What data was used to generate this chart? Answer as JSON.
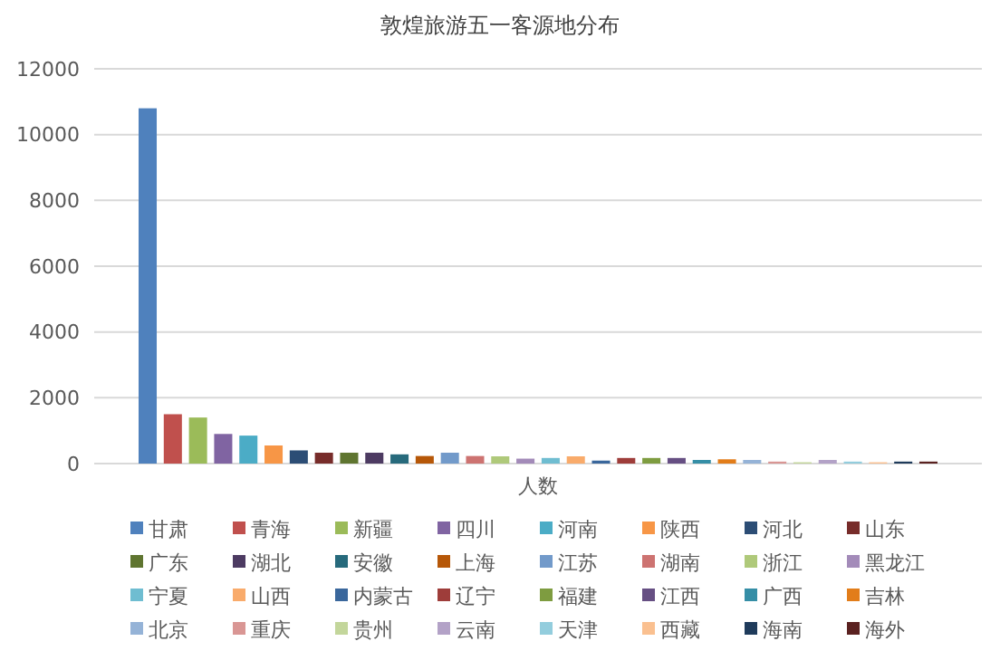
{
  "chart_data": {
    "type": "bar",
    "title": "敦煌旅游五一客源地分布",
    "categories": [
      "人数"
    ],
    "ylim": [
      0,
      12000
    ],
    "yticks": [
      0,
      2000,
      4000,
      6000,
      8000,
      10000,
      12000
    ],
    "grid": "y",
    "legend": "bottom",
    "series": [
      {
        "name": "甘肃",
        "color": "#4f81bd",
        "values": [
          10800
        ]
      },
      {
        "name": "青海",
        "color": "#c0504d",
        "values": [
          1500
        ]
      },
      {
        "name": "新疆",
        "color": "#9bbb59",
        "values": [
          1400
        ]
      },
      {
        "name": "四川",
        "color": "#8064a2",
        "values": [
          900
        ]
      },
      {
        "name": "河南",
        "color": "#4bacc6",
        "values": [
          850
        ]
      },
      {
        "name": "陕西",
        "color": "#f79646",
        "values": [
          550
        ]
      },
      {
        "name": "河北",
        "color": "#2c4d75",
        "values": [
          400
        ]
      },
      {
        "name": "山东",
        "color": "#772c2a",
        "values": [
          330
        ]
      },
      {
        "name": "广东",
        "color": "#5f7530",
        "values": [
          330
        ]
      },
      {
        "name": "湖北",
        "color": "#4d3b62",
        "values": [
          330
        ]
      },
      {
        "name": "安徽",
        "color": "#276a7c",
        "values": [
          280
        ]
      },
      {
        "name": "上海",
        "color": "#b65708",
        "values": [
          230
        ]
      },
      {
        "name": "江苏",
        "color": "#729aca",
        "values": [
          330
        ]
      },
      {
        "name": "湖南",
        "color": "#cd7371",
        "values": [
          230
        ]
      },
      {
        "name": "浙江",
        "color": "#afc97a",
        "values": [
          220
        ]
      },
      {
        "name": "黑龙江",
        "color": "#a38bb9",
        "values": [
          150
        ]
      },
      {
        "name": "宁夏",
        "color": "#6fbdd1",
        "values": [
          170
        ]
      },
      {
        "name": "山西",
        "color": "#f9ab6b",
        "values": [
          220
        ]
      },
      {
        "name": "内蒙古",
        "color": "#3a679c",
        "values": [
          90
        ]
      },
      {
        "name": "辽宁",
        "color": "#9e3d3a",
        "values": [
          170
        ]
      },
      {
        "name": "福建",
        "color": "#7e9c40",
        "values": [
          170
        ]
      },
      {
        "name": "江西",
        "color": "#664f83",
        "values": [
          170
        ]
      },
      {
        "name": "广西",
        "color": "#358ea6",
        "values": [
          110
        ]
      },
      {
        "name": "吉林",
        "color": "#e27d1a",
        "values": [
          130
        ]
      },
      {
        "name": "北京",
        "color": "#95b3d7",
        "values": [
          110
        ]
      },
      {
        "name": "重庆",
        "color": "#d99694",
        "values": [
          60
        ]
      },
      {
        "name": "贵州",
        "color": "#c3d69b",
        "values": [
          40
        ]
      },
      {
        "name": "云南",
        "color": "#b3a2c7",
        "values": [
          110
        ]
      },
      {
        "name": "天津",
        "color": "#93cddd",
        "values": [
          60
        ]
      },
      {
        "name": "西藏",
        "color": "#fac090",
        "values": [
          40
        ]
      },
      {
        "name": "海南",
        "color": "#1f3b5b",
        "values": [
          60
        ]
      },
      {
        "name": "海外",
        "color": "#5a2120",
        "values": [
          60
        ]
      }
    ]
  }
}
